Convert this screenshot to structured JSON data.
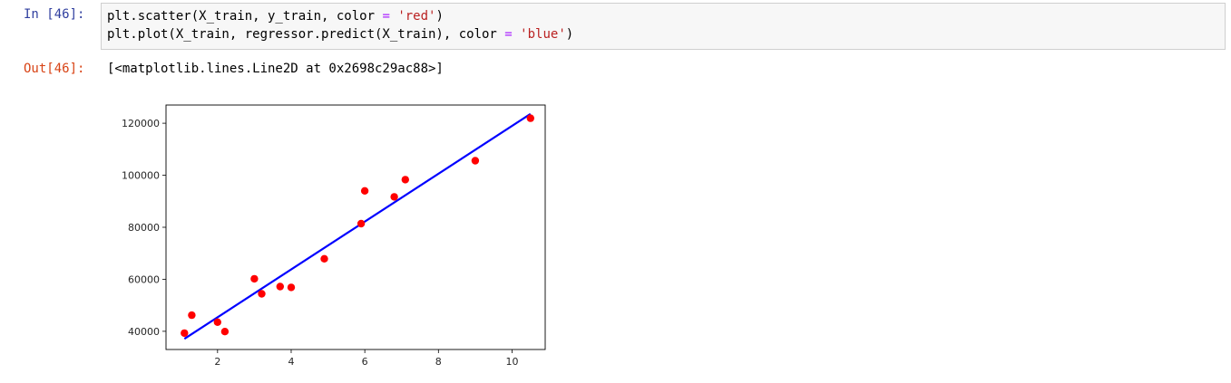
{
  "cell": {
    "in_prompt": "In [46]:",
    "code": {
      "line1": {
        "a": "plt.scatter(X_train, y_train, color ",
        "op": "=",
        "b": " ",
        "str": "'red'",
        "c": ")"
      },
      "line2": {
        "a": "plt.plot(X_train, regressor.predict(X_train), color ",
        "op": "=",
        "b": " ",
        "str": "'blue'",
        "c": ")"
      }
    },
    "out_prompt": "Out[46]:",
    "out_text": "[<matplotlib.lines.Line2D at 0x2698c29ac88>]"
  },
  "chart_data": {
    "type": "scatter",
    "title": "",
    "xlabel": "",
    "ylabel": "",
    "xlim": [
      0.6,
      10.9
    ],
    "ylim": [
      33000,
      127000
    ],
    "xticks": [
      2,
      4,
      6,
      8,
      10
    ],
    "yticks": [
      40000,
      60000,
      80000,
      100000,
      120000
    ],
    "grid": false,
    "series": [
      {
        "kind": "scatter",
        "color": "#ff0000",
        "points": [
          [
            1.1,
            39300
          ],
          [
            1.3,
            46200
          ],
          [
            2.0,
            43500
          ],
          [
            2.2,
            39900
          ],
          [
            3.0,
            60200
          ],
          [
            3.2,
            54400
          ],
          [
            3.7,
            57200
          ],
          [
            4.0,
            56900
          ],
          [
            4.9,
            67900
          ],
          [
            5.9,
            81400
          ],
          [
            6.0,
            94000
          ],
          [
            6.8,
            91700
          ],
          [
            7.1,
            98300
          ],
          [
            9.0,
            105600
          ],
          [
            10.5,
            121900
          ]
        ]
      },
      {
        "kind": "line",
        "color": "#0000ff",
        "points": [
          [
            1.1,
            37100
          ],
          [
            10.5,
            123600
          ]
        ]
      }
    ]
  }
}
